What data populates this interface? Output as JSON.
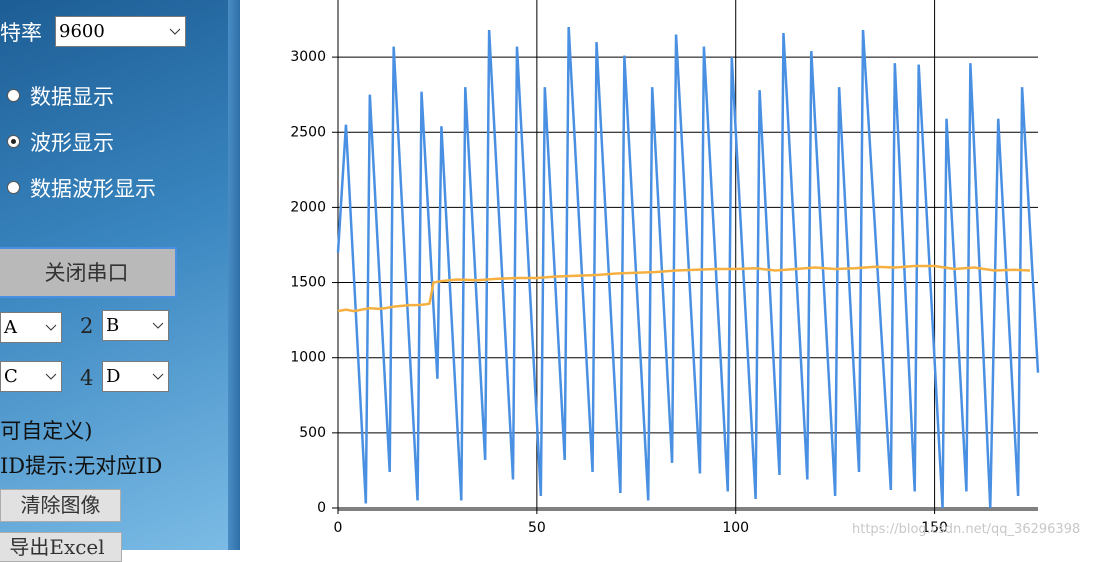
{
  "panel": {
    "baud_label": "特率",
    "baud_value": "9600",
    "radios": [
      {
        "label": "数据显示",
        "checked": false
      },
      {
        "label": "波形显示",
        "checked": true
      },
      {
        "label": "数据波形显示",
        "checked": false
      }
    ],
    "close_button": "关闭串口",
    "channels": [
      {
        "value": "A"
      },
      {
        "label": "2",
        "value": "B"
      },
      {
        "value": "C"
      },
      {
        "label": "4",
        "value": "D"
      }
    ],
    "custom_note": "(可自定义)",
    "id_hint": "ID提示:无对应ID",
    "clear_button": "清除图像",
    "export_button": "导出Excel"
  },
  "watermark": "https://blog.csdn.net/qq_36296398",
  "chart_data": {
    "type": "line",
    "xlim": [
      0,
      176
    ],
    "ylim": [
      0,
      3380
    ],
    "xticks": [
      0,
      50,
      100,
      150
    ],
    "yticks": [
      0,
      500,
      1000,
      1500,
      2000,
      2500,
      3000
    ],
    "grid": true,
    "series": [
      {
        "color": "#4a90e2",
        "x": [
          0,
          2,
          7,
          8,
          13,
          14,
          20,
          21,
          25,
          26,
          31,
          32,
          37,
          38,
          44,
          45,
          51,
          52,
          57,
          58,
          64,
          65,
          71,
          72,
          78,
          79,
          84,
          85,
          91,
          92,
          98,
          99,
          105,
          106,
          111,
          112,
          118,
          119,
          125,
          126,
          131,
          132,
          139,
          140,
          145,
          146,
          152,
          153,
          158,
          159,
          164,
          166,
          171,
          172,
          176
        ],
        "values": [
          1700,
          2550,
          30,
          2750,
          240,
          3070,
          50,
          2770,
          860,
          2540,
          50,
          2800,
          320,
          3180,
          190,
          3070,
          80,
          2800,
          320,
          3200,
          240,
          3100,
          100,
          3010,
          50,
          2800,
          300,
          3150,
          230,
          3070,
          110,
          3000,
          60,
          2780,
          220,
          3160,
          190,
          3040,
          80,
          2800,
          240,
          3180,
          120,
          2960,
          110,
          2950,
          0,
          2590,
          110,
          2960,
          0,
          2590,
          80,
          2800,
          900
        ]
      },
      {
        "color": "#f5b041",
        "x": [
          0,
          2,
          4,
          6,
          8,
          10,
          12,
          14,
          16,
          18,
          20,
          22,
          23,
          24,
          26,
          30,
          35,
          40,
          45,
          50,
          55,
          60,
          65,
          70,
          75,
          80,
          85,
          90,
          95,
          100,
          105,
          110,
          115,
          120,
          125,
          130,
          135,
          140,
          145,
          150,
          155,
          160,
          165,
          170,
          174
        ],
        "values": [
          1310,
          1320,
          1310,
          1320,
          1330,
          1325,
          1330,
          1340,
          1345,
          1350,
          1350,
          1355,
          1360,
          1500,
          1510,
          1520,
          1515,
          1525,
          1530,
          1530,
          1540,
          1545,
          1550,
          1560,
          1565,
          1570,
          1580,
          1585,
          1590,
          1590,
          1595,
          1580,
          1590,
          1600,
          1590,
          1595,
          1605,
          1600,
          1610,
          1610,
          1590,
          1600,
          1580,
          1585,
          1580
        ]
      }
    ]
  }
}
